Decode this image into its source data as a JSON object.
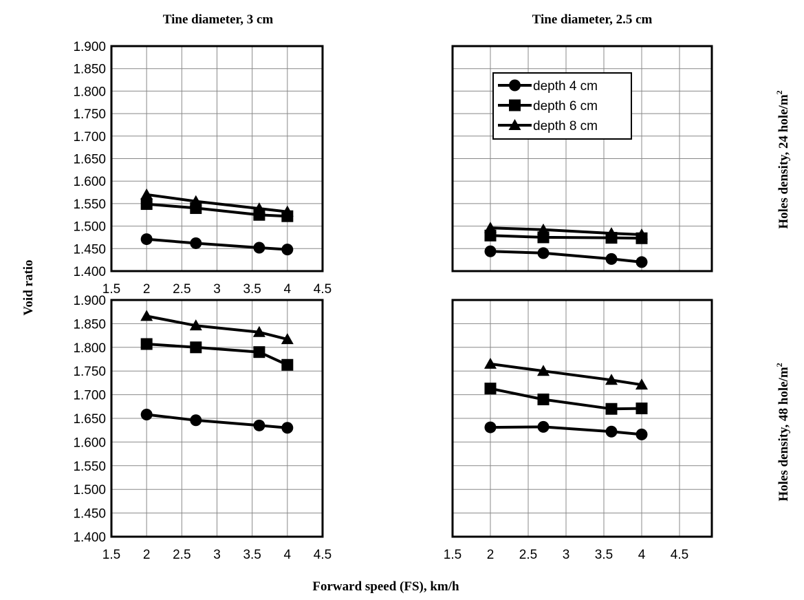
{
  "figure": {
    "column_titles": [
      "Tine diameter, 3 cm",
      "Tine diameter, 2.5 cm"
    ],
    "row_titles": [
      "Holes density, 24 hole/m",
      "Holes density, 48 hole/m"
    ],
    "row_title_superscript": "2",
    "y_axis_title": "Void ratio",
    "x_axis_title": "Forward speed (FS), km/h"
  },
  "chart_data": [
    {
      "type": "line",
      "panel": "top-left",
      "x": [
        2,
        2.7,
        3.6,
        4
      ],
      "xlim": [
        1.5,
        4.5
      ],
      "ylim": [
        1.4,
        1.9
      ],
      "x_ticks": [
        "1.5",
        "2",
        "2.5",
        "3",
        "3.5",
        "4",
        "4.5"
      ],
      "y_ticks": [
        "1.400",
        "1.450",
        "1.500",
        "1.550",
        "1.600",
        "1.650",
        "1.700",
        "1.750",
        "1.800",
        "1.850",
        "1.900"
      ],
      "grid": true,
      "series": [
        {
          "name": "depth 4 cm",
          "marker": "circle",
          "values": [
            1.471,
            1.462,
            1.452,
            1.448
          ]
        },
        {
          "name": "depth 6 cm",
          "marker": "square",
          "values": [
            1.549,
            1.54,
            1.525,
            1.522
          ]
        },
        {
          "name": "depth 8 cm",
          "marker": "triangle",
          "values": [
            1.57,
            1.555,
            1.539,
            1.532
          ]
        }
      ]
    },
    {
      "type": "line",
      "panel": "top-right",
      "x": [
        2,
        2.7,
        3.6,
        4
      ],
      "xlim": [
        1.5,
        4.5
      ],
      "ylim": [
        1.4,
        1.9
      ],
      "grid": true,
      "legend": "top-center",
      "series": [
        {
          "name": "depth 4 cm",
          "marker": "circle",
          "values": [
            1.444,
            1.44,
            1.427,
            1.42
          ]
        },
        {
          "name": "depth 6 cm",
          "marker": "square",
          "values": [
            1.479,
            1.475,
            1.474,
            1.473
          ]
        },
        {
          "name": "depth 8 cm",
          "marker": "triangle",
          "values": [
            1.496,
            1.492,
            1.484,
            1.481
          ]
        }
      ]
    },
    {
      "type": "line",
      "panel": "bottom-left",
      "x": [
        2,
        2.7,
        3.6,
        4
      ],
      "xlim": [
        1.5,
        4.5
      ],
      "ylim": [
        1.4,
        1.9
      ],
      "x_ticks": [
        "1.5",
        "2",
        "2.5",
        "3",
        "3.5",
        "4",
        "4.5"
      ],
      "y_ticks": [
        "1.400",
        "1.450",
        "1.500",
        "1.550",
        "1.600",
        "1.650",
        "1.700",
        "1.750",
        "1.800",
        "1.850",
        "1.900"
      ],
      "grid": true,
      "series": [
        {
          "name": "depth 4 cm",
          "marker": "circle",
          "values": [
            1.658,
            1.646,
            1.635,
            1.63
          ]
        },
        {
          "name": "depth 6 cm",
          "marker": "square",
          "values": [
            1.807,
            1.8,
            1.79,
            1.763
          ]
        },
        {
          "name": "depth 8 cm",
          "marker": "triangle",
          "values": [
            1.866,
            1.846,
            1.832,
            1.817
          ]
        }
      ]
    },
    {
      "type": "line",
      "panel": "bottom-right",
      "x": [
        2,
        2.7,
        3.6,
        4
      ],
      "xlim": [
        1.5,
        4.5
      ],
      "ylim": [
        1.4,
        1.9
      ],
      "x_ticks": [
        "1.5",
        "2",
        "2.5",
        "3",
        "3.5",
        "4",
        "4.5"
      ],
      "grid": true,
      "series": [
        {
          "name": "depth 4 cm",
          "marker": "circle",
          "values": [
            1.631,
            1.632,
            1.622,
            1.616
          ]
        },
        {
          "name": "depth 6 cm",
          "marker": "square",
          "values": [
            1.713,
            1.69,
            1.67,
            1.671
          ]
        },
        {
          "name": "depth 8 cm",
          "marker": "triangle",
          "values": [
            1.765,
            1.75,
            1.731,
            1.721
          ]
        }
      ]
    }
  ]
}
